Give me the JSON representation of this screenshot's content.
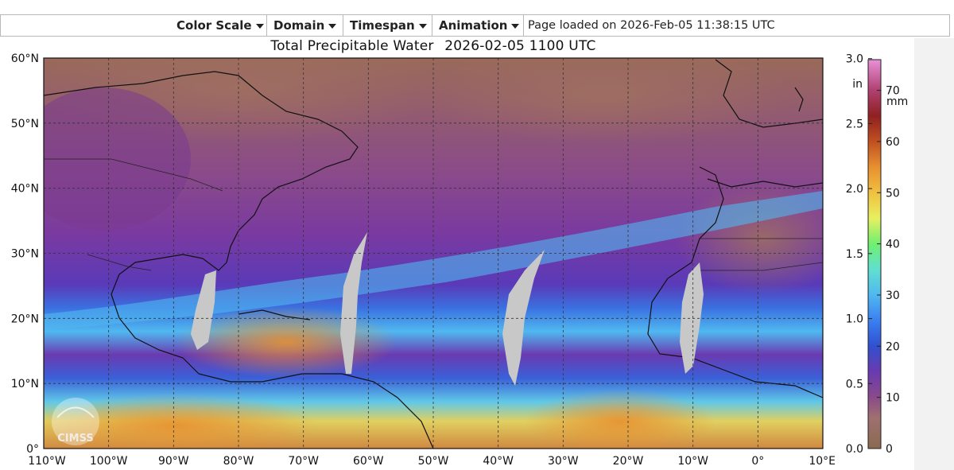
{
  "menu": {
    "items": [
      {
        "label": "Color Scale",
        "name": "menu-color-scale"
      },
      {
        "label": "Domain",
        "name": "menu-domain"
      },
      {
        "label": "Timespan",
        "name": "menu-timespan"
      },
      {
        "label": "Animation",
        "name": "menu-animation"
      }
    ],
    "status": "Page loaded on 2026-Feb-05 11:38:15 UTC"
  },
  "map": {
    "title": "Total Precipitable Water",
    "timestamp": "2026-02-05 1100 UTC",
    "lat_labels": [
      "60°N",
      "50°N",
      "40°N",
      "30°N",
      "20°N",
      "10°N",
      "0°"
    ],
    "lon_labels": [
      "110°W",
      "100°W",
      "90°W",
      "80°W",
      "70°W",
      "60°W",
      "50°W",
      "40°W",
      "30°W",
      "20°W",
      "10°W",
      "0°",
      "10°E"
    ],
    "lat_range": [
      0,
      60
    ],
    "lon_range": [
      -110,
      10
    ],
    "logo_text": "CIMSS",
    "missing_data_color": "#c8c8c8",
    "land_outline_color": "#111111"
  },
  "colorbar": {
    "inch_unit": "in",
    "mm_unit": "mm",
    "inch_ticks": [
      "3.0",
      "2.5",
      "2.0",
      "1.5",
      "1.0",
      "0.5",
      "0.0"
    ],
    "mm_ticks": [
      "70",
      "60",
      "50",
      "40",
      "30",
      "20",
      "10",
      "0"
    ],
    "inch_values": [
      3.0,
      2.5,
      2.0,
      1.5,
      1.0,
      0.5,
      0.0
    ],
    "mm_values": [
      70,
      60,
      50,
      40,
      30,
      20,
      10,
      0
    ],
    "range_mm": [
      0,
      76
    ],
    "stops": [
      {
        "mm": 0,
        "color": "#8a6a50"
      },
      {
        "mm": 6,
        "color": "#a07070"
      },
      {
        "mm": 10,
        "color": "#8a4a8a"
      },
      {
        "mm": 15,
        "color": "#6a3ab0"
      },
      {
        "mm": 20,
        "color": "#3050d0"
      },
      {
        "mm": 25,
        "color": "#3a80f0"
      },
      {
        "mm": 30,
        "color": "#50b8f0"
      },
      {
        "mm": 35,
        "color": "#60e0d0"
      },
      {
        "mm": 40,
        "color": "#70f070"
      },
      {
        "mm": 45,
        "color": "#e8f060"
      },
      {
        "mm": 50,
        "color": "#f0c040"
      },
      {
        "mm": 55,
        "color": "#e89030"
      },
      {
        "mm": 60,
        "color": "#c05020"
      },
      {
        "mm": 65,
        "color": "#902020"
      },
      {
        "mm": 70,
        "color": "#b04070"
      },
      {
        "mm": 76,
        "color": "#e890d8"
      }
    ]
  }
}
